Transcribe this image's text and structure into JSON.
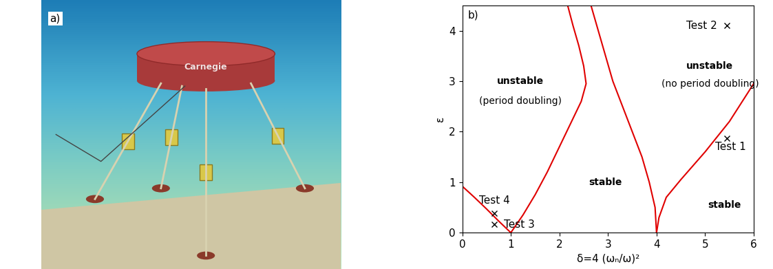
{
  "panel_a": {
    "label": "a)",
    "logo": "Carnegie"
  },
  "chart_data": {
    "type": "line",
    "panel_label": "b)",
    "xlabel": "δ=4 (ωₙ/ω)²",
    "ylabel": "ε",
    "xlim": [
      0,
      6
    ],
    "ylim": [
      0,
      4.5
    ],
    "xticks": [
      0,
      1,
      2,
      3,
      4,
      5,
      6
    ],
    "yticks": [
      0,
      1,
      2,
      3,
      4
    ],
    "series": [
      {
        "type": "line",
        "color": "#e00000",
        "x": [
          0,
          0.25,
          0.5,
          0.75,
          1.0
        ],
        "values": [
          0.92,
          0.7,
          0.47,
          0.23,
          0.0
        ]
      },
      {
        "type": "line",
        "color": "#e00000",
        "x": [
          1.0,
          1.25,
          1.5,
          1.75,
          2.0,
          2.25,
          2.45,
          2.55,
          2.5,
          2.4,
          2.28,
          2.17
        ],
        "values": [
          0.0,
          0.35,
          0.75,
          1.2,
          1.7,
          2.2,
          2.6,
          2.95,
          3.3,
          3.7,
          4.1,
          4.5
        ]
      },
      {
        "type": "line",
        "color": "#e00000",
        "x": [
          4.0,
          3.97,
          3.85,
          3.7,
          3.5,
          3.3,
          3.1,
          2.95,
          2.8,
          2.65
        ],
        "values": [
          0.0,
          0.5,
          1.0,
          1.5,
          2.0,
          2.5,
          3.0,
          3.5,
          4.0,
          4.5
        ]
      },
      {
        "type": "line",
        "color": "#e00000",
        "x": [
          4.0,
          4.05,
          4.2,
          4.5,
          5.0,
          5.5,
          6.0
        ],
        "values": [
          0.0,
          0.3,
          0.7,
          1.05,
          1.6,
          2.2,
          2.95
        ]
      },
      {
        "type": "scatter",
        "color": "#000000",
        "marker": "x",
        "x": [
          5.45,
          5.45,
          0.66,
          0.66
        ],
        "values": [
          1.87,
          4.1,
          0.16,
          0.38
        ],
        "point_labels": [
          "Test 1",
          "Test 2",
          "Test 3",
          "Test 4"
        ]
      }
    ],
    "annotations": [
      {
        "text": "unstable",
        "x": 1.2,
        "y": 3.0
      },
      {
        "text": "(period doubling)",
        "x": 1.2,
        "y": 2.6
      },
      {
        "text": "stable",
        "x": 2.95,
        "y": 1.0
      },
      {
        "text": "unstable",
        "x": 5.1,
        "y": 3.3
      },
      {
        "text": "(no period doubling)",
        "x": 5.1,
        "y": 2.95
      },
      {
        "text": "stable",
        "x": 5.4,
        "y": 0.55
      }
    ]
  }
}
